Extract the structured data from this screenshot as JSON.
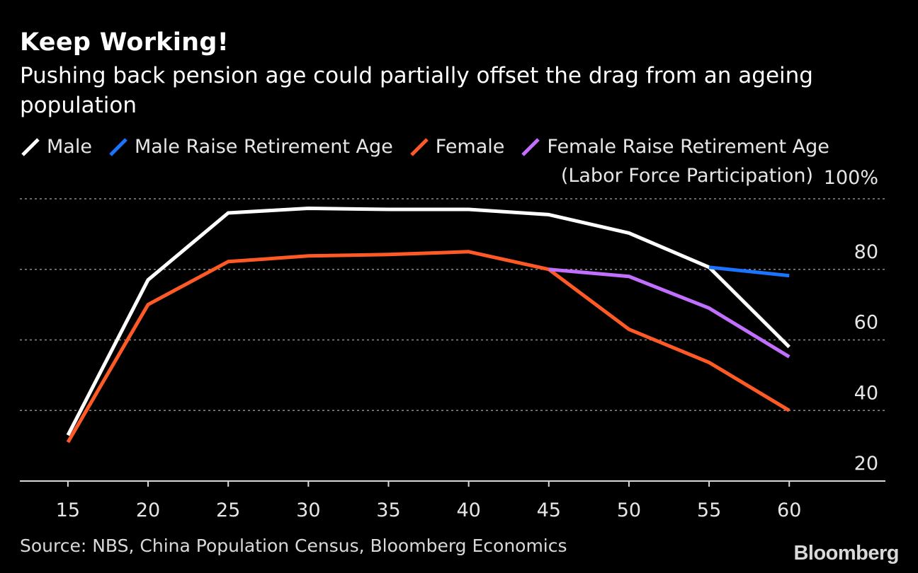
{
  "title": "Keep Working!",
  "subtitle": "Pushing back pension age could partially offset the drag from an ageing population",
  "ylabel": "(Labor Force Participation)",
  "source": "Source: NBS, China Population Census, Bloomberg Economics",
  "brand": "Bloomberg",
  "colors": {
    "background": "#000000",
    "grid": "#8c8c8c",
    "male": "#ffffff",
    "male_raise": "#1a74ff",
    "female": "#ff5a26",
    "female_raise": "#c26fff"
  },
  "chart_data": {
    "type": "line",
    "title": "Keep Working!",
    "ylabel": "(Labor Force Participation)",
    "xlabel": "",
    "x_ticks": [
      15,
      20,
      25,
      30,
      35,
      40,
      45,
      50,
      55,
      60
    ],
    "y_ticks": [
      20,
      40,
      60,
      80,
      100
    ],
    "y_tick_labels": [
      "20",
      "40",
      "60",
      "80",
      "100%"
    ],
    "xlim": [
      12,
      66
    ],
    "ylim": [
      20,
      100
    ],
    "grid": true,
    "legend_position": "top",
    "series": [
      {
        "name": "Male",
        "color": "#ffffff",
        "x": [
          15,
          20,
          25,
          30,
          35,
          40,
          45,
          50,
          55,
          60
        ],
        "y": [
          33,
          77,
          96,
          97.3,
          97,
          97,
          95.5,
          90.3,
          80.6,
          58
        ]
      },
      {
        "name": "Male Raise Retirement Age",
        "color": "#1a74ff",
        "x": [
          55,
          60
        ],
        "y": [
          80.6,
          78.2
        ]
      },
      {
        "name": "Female",
        "color": "#ff5a26",
        "x": [
          15,
          20,
          25,
          30,
          35,
          40,
          45,
          50,
          55,
          60
        ],
        "y": [
          31,
          70,
          82.2,
          83.8,
          84.2,
          85,
          80,
          63,
          53.6,
          40
        ]
      },
      {
        "name": "Female Raise Retirement Age",
        "color": "#c26fff",
        "x": [
          45,
          50,
          55,
          60
        ],
        "y": [
          80,
          78,
          69,
          55.2
        ]
      }
    ]
  }
}
